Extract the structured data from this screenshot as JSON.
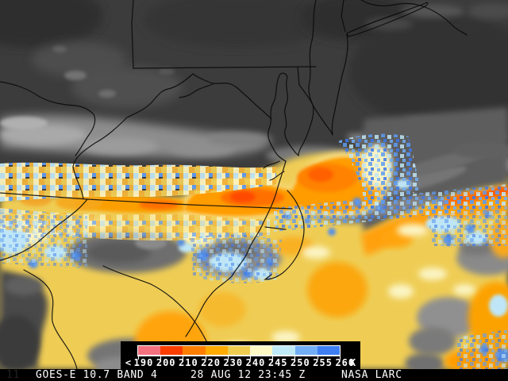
{
  "status_bar": {
    "frame_number": "11",
    "product": "GOES-E 10.7 BAND 4",
    "timestamp": "28 AUG 12 23:45 Z",
    "credit": "NASA LARC"
  },
  "legend": {
    "prefix_label": "<",
    "unit_label": "K",
    "ticks": [
      "190",
      "200",
      "210",
      "220",
      "230",
      "240",
      "245",
      "250",
      "255",
      "260"
    ],
    "segments": [
      {
        "range": "190-200",
        "color": "#F4717F"
      },
      {
        "range": "200-210",
        "color": "#FB3D00"
      },
      {
        "range": "210-220",
        "color": "#FF7E00"
      },
      {
        "range": "220-230",
        "color": "#FFAB00"
      },
      {
        "range": "230-240",
        "color": "#EDCC4F"
      },
      {
        "range": "240-245",
        "color": "#FCF9C6"
      },
      {
        "range": "245-250",
        "color": "#BFE9F6"
      },
      {
        "range": "250-255",
        "color": "#72AEF6"
      },
      {
        "range": "255-260",
        "color": "#3D7EF2"
      }
    ]
  },
  "map": {
    "palette": {
      "warm_surface_gray": "#3C3C3C",
      "mid_cloud_gray": "#8D8D8D",
      "cold_cloud_yellow": "#EFCD55",
      "colder_cloud_orange": "#FF9C00",
      "coldest_cloud_red_orange": "#FF4A00",
      "cirrus_pale_yellow": "#FBF4C3",
      "cool_cloud_cyan": "#BEE6F6",
      "cool_cloud_blue": "#4E8CEE",
      "boundary_line": "#000000"
    }
  }
}
